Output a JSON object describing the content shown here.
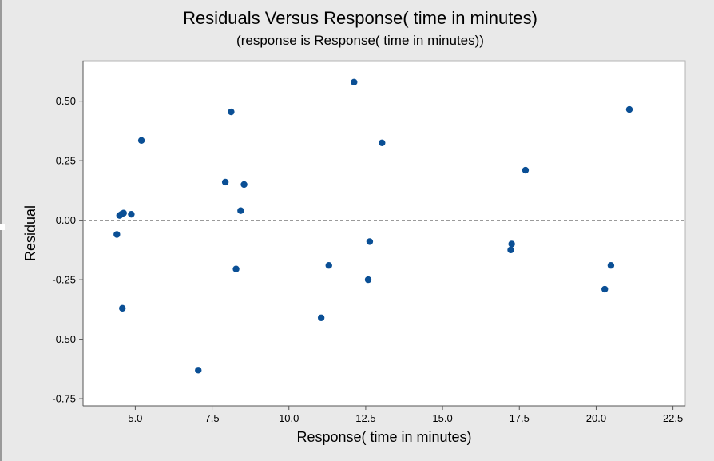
{
  "chart_data": {
    "type": "scatter",
    "title": "Residuals Versus Response( time in minutes)",
    "subtitle": "(response is Response( time in minutes))",
    "xlabel": "Response( time in minutes)",
    "ylabel": "Residual",
    "xlim": [
      3.3,
      22.9
    ],
    "ylim": [
      -0.78,
      0.67
    ],
    "xticks": [
      5.0,
      7.5,
      10.0,
      12.5,
      15.0,
      17.5,
      20.0,
      22.5
    ],
    "yticks": [
      -0.75,
      -0.5,
      -0.25,
      0.0,
      0.25,
      0.5
    ],
    "xtick_labels": [
      "5.0",
      "7.5",
      "10.0",
      "12.5",
      "15.0",
      "17.5",
      "20.0",
      "22.5"
    ],
    "ytick_labels": [
      "-0.75",
      "-0.50",
      "-0.25",
      "0.00",
      "0.25",
      "0.50"
    ],
    "reference_line_y": 0,
    "grid": false,
    "marker_color": "#0a4f95",
    "x": [
      4.4,
      4.49,
      4.55,
      4.58,
      4.62,
      4.87,
      5.2,
      7.05,
      7.93,
      8.12,
      8.28,
      8.43,
      8.54,
      11.05,
      11.3,
      12.12,
      12.58,
      12.63,
      13.03,
      17.22,
      17.25,
      17.7,
      20.28,
      20.48,
      21.08
    ],
    "y": [
      -0.06,
      0.02,
      0.025,
      -0.37,
      0.03,
      0.025,
      0.335,
      -0.63,
      0.16,
      0.455,
      -0.205,
      0.04,
      0.15,
      -0.41,
      -0.19,
      0.58,
      -0.25,
      -0.09,
      0.325,
      -0.125,
      -0.1,
      0.21,
      -0.29,
      -0.19,
      0.465
    ]
  }
}
